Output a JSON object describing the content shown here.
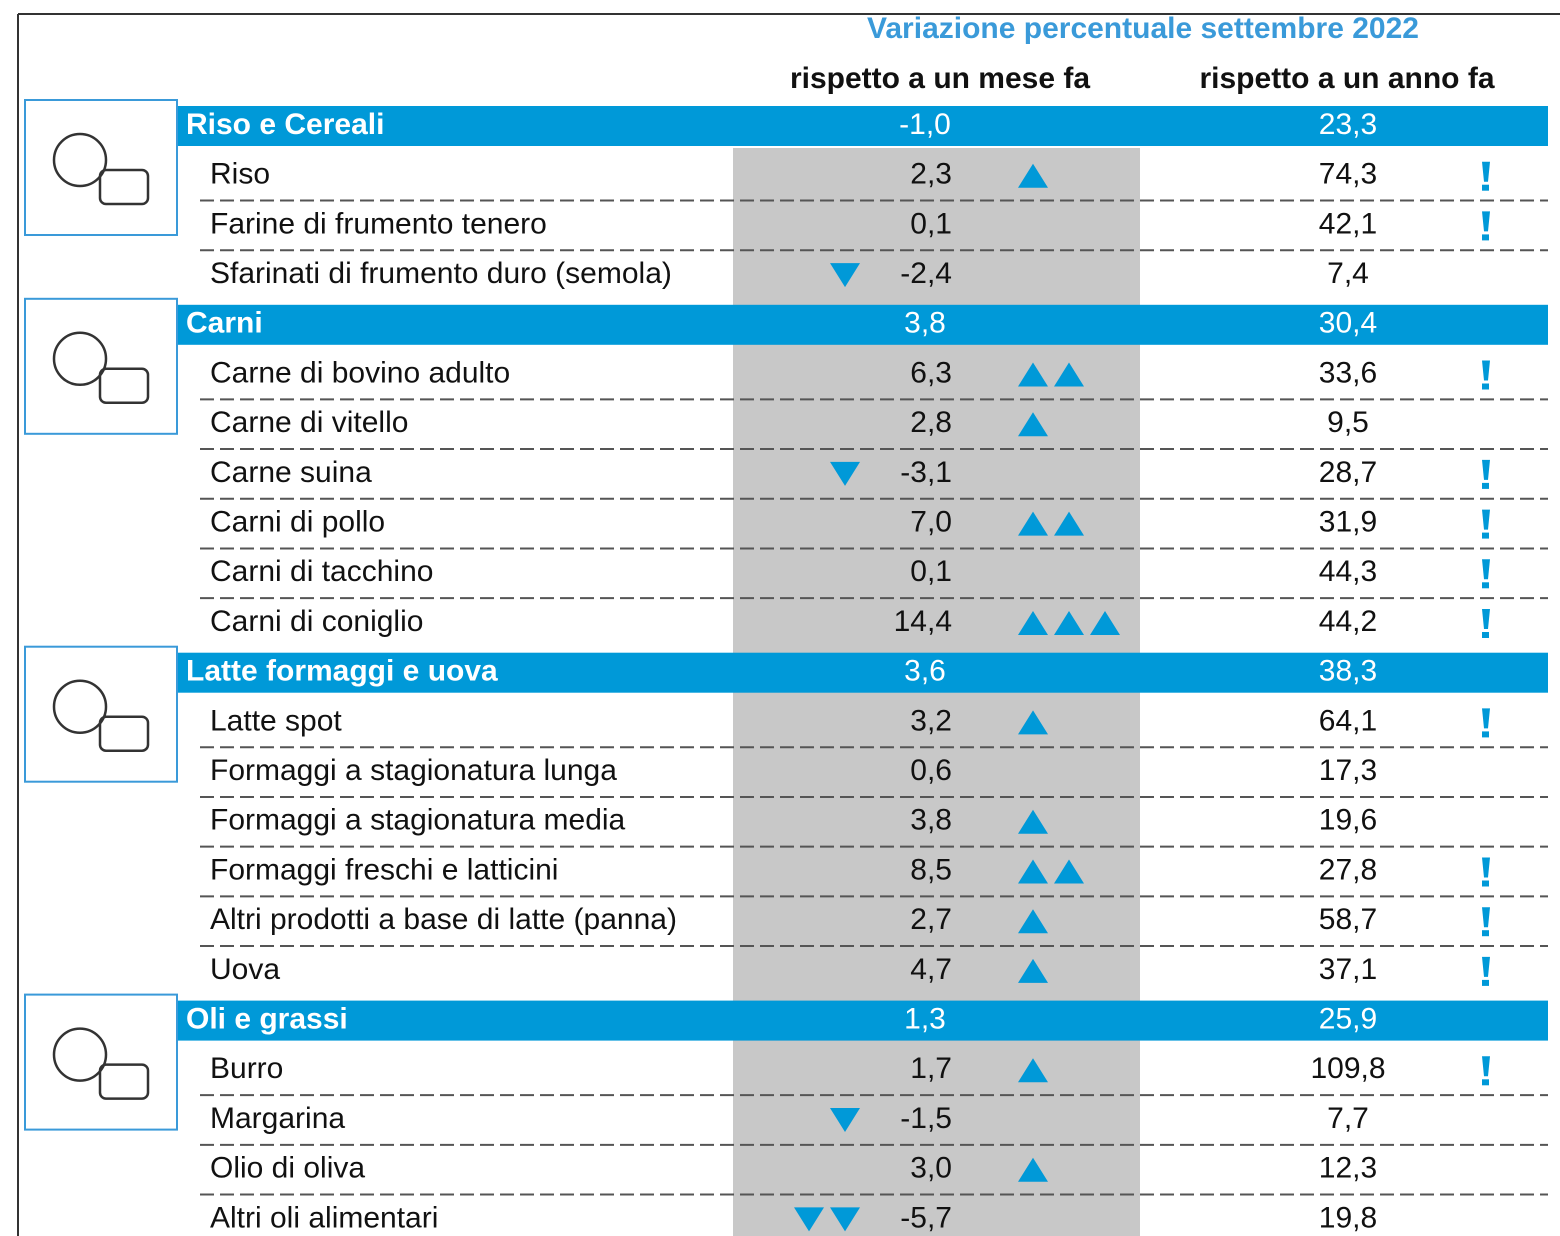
{
  "header": {
    "title": "Variazione percentuale settembre 2022",
    "columns": [
      "rispetto a un mese fa",
      "rispetto a un anno fa"
    ]
  },
  "groups": [
    {
      "name": "Riso e Cereali",
      "month": "-1,0",
      "year": "23,3",
      "items": [
        {
          "name": "Riso",
          "month": "2,3",
          "year": "74,3",
          "arrows": 1,
          "alert": true
        },
        {
          "name": "Farine di frumento tenero",
          "month": "0,1",
          "year": "42,1",
          "arrows": 0,
          "alert": true
        },
        {
          "name": "Sfarinati di frumento duro (semola)",
          "month": "-2,4",
          "year": "7,4",
          "arrows": -1,
          "alert": false
        }
      ]
    },
    {
      "name": "Carni",
      "month": "3,8",
      "year": "30,4",
      "items": [
        {
          "name": "Carne di bovino adulto",
          "month": "6,3",
          "year": "33,6",
          "arrows": 2,
          "alert": true
        },
        {
          "name": "Carne di vitello",
          "month": "2,8",
          "year": "9,5",
          "arrows": 1,
          "alert": false
        },
        {
          "name": "Carne suina",
          "month": "-3,1",
          "year": "28,7",
          "arrows": -1,
          "alert": true
        },
        {
          "name": "Carni di pollo",
          "month": "7,0",
          "year": "31,9",
          "arrows": 2,
          "alert": true
        },
        {
          "name": "Carni di tacchino",
          "month": "0,1",
          "year": "44,3",
          "arrows": 0,
          "alert": true
        },
        {
          "name": "Carni di coniglio",
          "month": "14,4",
          "year": "44,2",
          "arrows": 3,
          "alert": true
        }
      ]
    },
    {
      "name": "Latte formaggi e uova",
      "month": "3,6",
      "year": "38,3",
      "items": [
        {
          "name": "Latte spot",
          "month": "3,2",
          "year": "64,1",
          "arrows": 1,
          "alert": true
        },
        {
          "name": "Formaggi a stagionatura lunga",
          "month": "0,6",
          "year": "17,3",
          "arrows": 0,
          "alert": false
        },
        {
          "name": "Formaggi a stagionatura media",
          "month": "3,8",
          "year": "19,6",
          "arrows": 1,
          "alert": false
        },
        {
          "name": "Formaggi freschi e latticini",
          "month": "8,5",
          "year": "27,8",
          "arrows": 2,
          "alert": true
        },
        {
          "name": "Altri prodotti a base di latte (panna)",
          "month": "2,7",
          "year": "58,7",
          "arrows": 1,
          "alert": true
        },
        {
          "name": "Uova",
          "month": "4,7",
          "year": "37,1",
          "arrows": 1,
          "alert": true
        }
      ]
    },
    {
      "name": "Oli e grassi",
      "month": "1,3",
      "year": "25,9",
      "items": [
        {
          "name": "Burro",
          "month": "1,7",
          "year": "109,8",
          "arrows": 1,
          "alert": true
        },
        {
          "name": "Margarina",
          "month": "-1,5",
          "year": "7,7",
          "arrows": -1,
          "alert": false
        },
        {
          "name": "Olio di oliva",
          "month": "3,0",
          "year": "12,3",
          "arrows": 1,
          "alert": false
        },
        {
          "name": "Altri oli alimentari",
          "month": "-5,7",
          "year": "19,8",
          "arrows": -2,
          "alert": false
        }
      ]
    }
  ]
}
